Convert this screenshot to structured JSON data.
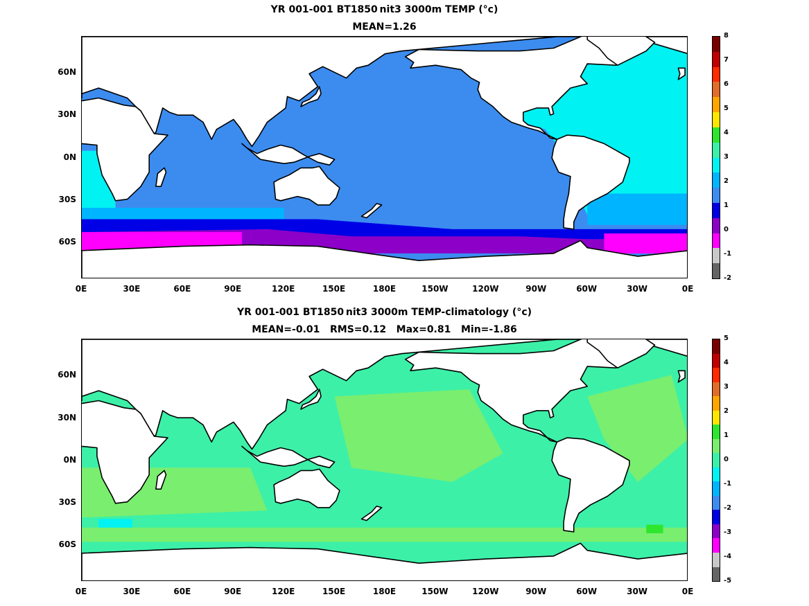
{
  "panels": [
    {
      "title": "YR 001-001 BT1850 nit3 3000m TEMP (°c)",
      "subtitle": "MEAN=1.26",
      "colorbar": {
        "labels": [
          "8",
          "7",
          "6",
          "5",
          "4",
          "3",
          "2",
          "1",
          "0",
          "-1",
          "-2"
        ],
        "colors": [
          "#7a0000",
          "#c00000",
          "#ff2a00",
          "#e06d28",
          "#ffa500",
          "#ffe600",
          "#2ee62e",
          "#3cf0a8",
          "#00f2f2",
          "#00b4ff",
          "#3c8cf0",
          "#0000e6",
          "#8c00c8",
          "#ff00ff",
          "#c8c8c8",
          "#646464"
        ]
      }
    },
    {
      "title": "YR 001-001 BT1850 nit3 3000m TEMP-climatology (°c)",
      "subtitle": "MEAN=-0.01   RMS=0.12   Max=0.81   Min=-1.86",
      "colorbar": {
        "labels": [
          "5",
          "4",
          "3",
          "2",
          "1",
          "0",
          "-1",
          "-2",
          "-3",
          "-4",
          "-5"
        ],
        "colors": [
          "#7a0000",
          "#c00000",
          "#ff2a00",
          "#e06d28",
          "#ffa500",
          "#ffe600",
          "#2ee62e",
          "#7aee6e",
          "#3cf0a8",
          "#00f2f2",
          "#00b4ff",
          "#3c8cf0",
          "#0000e6",
          "#8c00c8",
          "#ff00ff",
          "#c8c8c8",
          "#646464"
        ]
      }
    }
  ],
  "axes": {
    "lat_labels": [
      "60N",
      "30N",
      "0N",
      "30S",
      "60S"
    ],
    "lon_labels": [
      "0E",
      "30E",
      "60E",
      "90E",
      "120E",
      "150E",
      "180E",
      "150W",
      "120W",
      "90W",
      "60W",
      "30W",
      "0E"
    ]
  },
  "palette": {
    "land": "#ffffff",
    "coast": "#000000",
    "top_ocean": "#3c8cf0",
    "top_atlantic": "#00f2f2",
    "top_southern_blue": "#0000e6",
    "top_southern_purple": "#8c00c8",
    "top_southern_magenta": "#ff00ff",
    "top_cyan_light": "#00b4ff",
    "top_gray": "#c8c8c8",
    "bottom_ocean": "#3cf0a8",
    "bottom_ocean_alt": "#7aee6e",
    "bottom_cyan": "#00f2f2",
    "bottom_green": "#2ee62e"
  }
}
